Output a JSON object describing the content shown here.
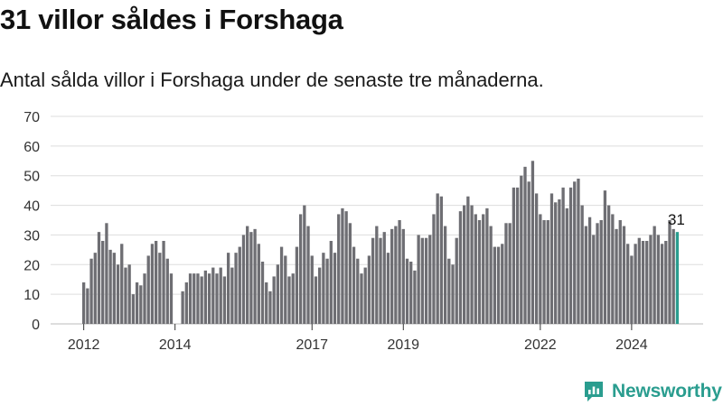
{
  "header": {
    "title": "31 villor såldes i Forshaga",
    "subtitle": "Antal sålda villor i Forshaga under de senaste tre månaderna."
  },
  "brand": {
    "name": "Newsworthy",
    "icon": "newsworthy-logo-icon"
  },
  "colors": {
    "bar": "#6e6e73",
    "highlight": "#2a9d8f",
    "grid": "#dddddd",
    "brand": "#2a9d8f"
  },
  "chart_data": {
    "type": "bar",
    "title": "",
    "xlabel": "",
    "ylabel": "",
    "ylim": [
      0,
      70
    ],
    "yticks": [
      0,
      10,
      20,
      30,
      40,
      50,
      60,
      70
    ],
    "grid": true,
    "start": "2012-01",
    "xticks": [
      "2012",
      "2014",
      "2017",
      "2019",
      "2022",
      "2024"
    ],
    "values": [
      14,
      12,
      22,
      24,
      31,
      28,
      34,
      25,
      24,
      20,
      27,
      19,
      20,
      10,
      14,
      13,
      17,
      23,
      27,
      28,
      24,
      28,
      22,
      17,
      null,
      null,
      11,
      14,
      17,
      17,
      17,
      16,
      18,
      17,
      19,
      17,
      19,
      16,
      24,
      19,
      24,
      26,
      30,
      33,
      31,
      32,
      27,
      21,
      14,
      11,
      16,
      20,
      26,
      23,
      16,
      17,
      26,
      37,
      40,
      33,
      23,
      16,
      19,
      24,
      22,
      28,
      24,
      37,
      39,
      38,
      34,
      26,
      22,
      17,
      19,
      23,
      29,
      33,
      29,
      31,
      24,
      32,
      33,
      35,
      32,
      22,
      21,
      18,
      30,
      29,
      29,
      30,
      37,
      44,
      43,
      33,
      22,
      20,
      29,
      38,
      40,
      43,
      40,
      37,
      35,
      37,
      39,
      33,
      26,
      26,
      27,
      34,
      34,
      46,
      46,
      50,
      53,
      48,
      55,
      44,
      37,
      35,
      35,
      44,
      41,
      42,
      46,
      39,
      46,
      48,
      49,
      40,
      33,
      36,
      30,
      34,
      35,
      45,
      40,
      37,
      32,
      35,
      33,
      27,
      23,
      27,
      29,
      28,
      28,
      30,
      33,
      30,
      27,
      28,
      35,
      32,
      31
    ],
    "highlight_last": true,
    "last_label": "31"
  }
}
